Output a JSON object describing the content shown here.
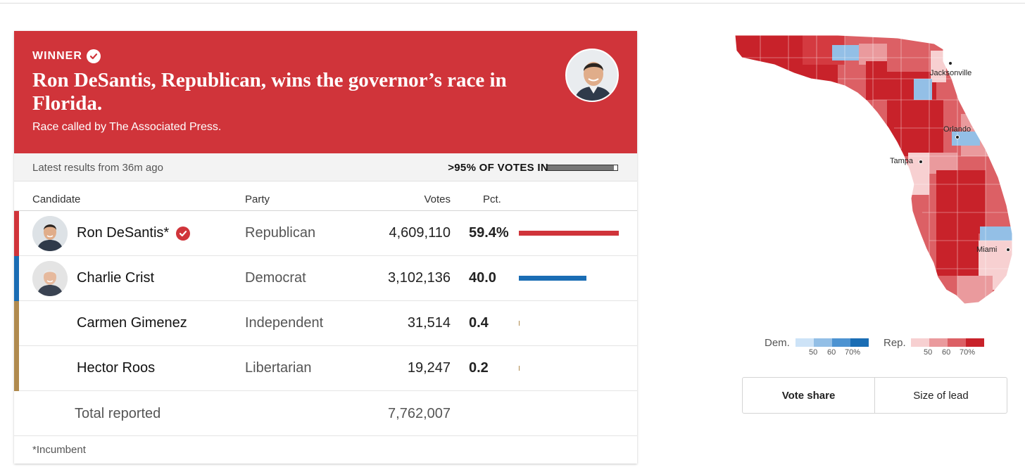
{
  "banner": {
    "winner_label": "WINNER",
    "headline": "Ron DeSantis, Republican, wins the governor’s race in Florida.",
    "called_by": "Race called by The Associated Press.",
    "color": "#d0343a"
  },
  "status": {
    "latest": "Latest results from 36m ago",
    "votes_in": ">95% OF VOTES IN",
    "votes_in_fraction": 0.95
  },
  "table": {
    "headers": {
      "candidate": "Candidate",
      "party": "Party",
      "votes": "Votes",
      "pct": "Pct."
    },
    "rows": [
      {
        "name": "Ron DeSantis*",
        "party": "Republican",
        "votes": "4,609,110",
        "pct": "59.4%",
        "pct_value": 59.4,
        "color": "#d0343a",
        "winner": true,
        "photo": true
      },
      {
        "name": "Charlie Crist",
        "party": "Democrat",
        "votes": "3,102,136",
        "pct": "40.0",
        "pct_value": 40.0,
        "color": "#1a6db4",
        "winner": false,
        "photo": true
      },
      {
        "name": "Carmen Gimenez",
        "party": "Independent",
        "votes": "31,514",
        "pct": "0.4",
        "pct_value": 0.4,
        "color": "#b08a4e",
        "winner": false,
        "photo": false
      },
      {
        "name": "Hector Roos",
        "party": "Libertarian",
        "votes": "19,247",
        "pct": "0.2",
        "pct_value": 0.2,
        "color": "#b08a4e",
        "winner": false,
        "photo": false
      }
    ],
    "total_label": "Total reported",
    "total_votes": "7,762,007",
    "footnote": "*Incumbent"
  },
  "map": {
    "cities": [
      "Jacksonville",
      "Orlando",
      "Tampa",
      "Miami"
    ]
  },
  "legend": {
    "dem_label": "Dem.",
    "rep_label": "Rep.",
    "ticks": [
      "50",
      "60",
      "70%"
    ],
    "dem_colors": [
      "#cde3f7",
      "#93bfe6",
      "#4d93d1",
      "#1a6db4"
    ],
    "rep_colors": [
      "#f7d0d1",
      "#ea9a9d",
      "#dc6065",
      "#c8222a"
    ]
  },
  "toggle": {
    "vote_share": "Vote share",
    "size_of_lead": "Size of lead"
  }
}
